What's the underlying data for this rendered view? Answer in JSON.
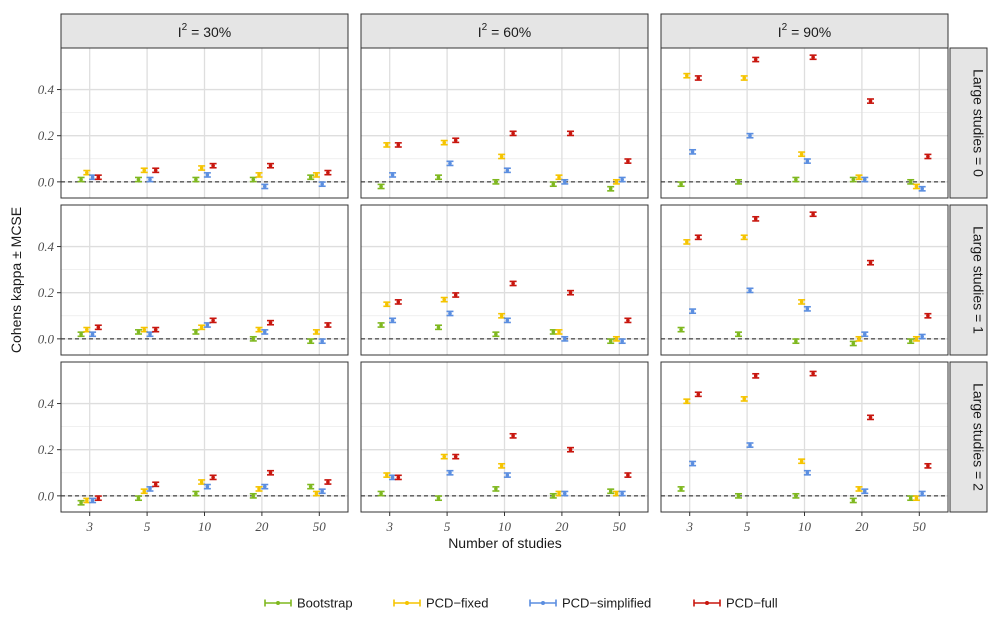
{
  "chart_data": {
    "type": "scatter",
    "xlabel": "Number of studies",
    "ylabel": "Cohens kappa ± MCSE",
    "x_categories": [
      "3",
      "5",
      "10",
      "20",
      "50"
    ],
    "y_ticks": [
      0.0,
      0.2,
      0.4
    ],
    "y_tick_labels": [
      "0.0",
      "0.2",
      "0.4"
    ],
    "ylim": [
      -0.07,
      0.58
    ],
    "reference_line_y": 0,
    "grid": true,
    "legend_position": "bottom",
    "columns": [
      {
        "label_base": "I",
        "label_sup": "2",
        "label_rest": " = 30%"
      },
      {
        "label_base": "I",
        "label_sup": "2",
        "label_rest": " = 60%"
      },
      {
        "label_base": "I",
        "label_sup": "2",
        "label_rest": " = 90%"
      }
    ],
    "rows": [
      {
        "label": "Large studies = 0"
      },
      {
        "label": "Large studies = 1"
      },
      {
        "label": "Large studies = 2"
      }
    ],
    "series": [
      {
        "name": "Bootstrap",
        "color": "#7fb81f",
        "dodge": -0.15
      },
      {
        "name": "PCD−fixed",
        "color": "#f5c400",
        "dodge": -0.05
      },
      {
        "name": "PCD−simplified",
        "color": "#5b8ee0",
        "dodge": 0.05
      },
      {
        "name": "PCD−full",
        "color": "#c8160e",
        "dodge": 0.15
      }
    ],
    "mcse": 0.009,
    "values": [
      [
        [
          [
            0.01,
            0.01,
            0.01,
            0.01,
            0.02
          ],
          [
            0.04,
            0.05,
            0.06,
            0.03,
            0.03
          ],
          [
            0.02,
            0.01,
            0.03,
            -0.02,
            -0.01
          ],
          [
            0.02,
            0.05,
            0.07,
            0.07,
            0.04
          ]
        ],
        [
          [
            -0.02,
            0.02,
            0.0,
            -0.01,
            -0.03
          ],
          [
            0.16,
            0.17,
            0.11,
            0.02,
            0.0
          ],
          [
            0.03,
            0.08,
            0.05,
            0.0,
            0.01
          ],
          [
            0.16,
            0.18,
            0.21,
            0.21,
            0.09
          ]
        ],
        [
          [
            -0.01,
            0.0,
            0.01,
            0.01,
            0.0
          ],
          [
            0.46,
            0.45,
            0.12,
            0.02,
            -0.02
          ],
          [
            0.13,
            0.2,
            0.09,
            0.01,
            -0.03
          ],
          [
            0.45,
            0.53,
            0.54,
            0.35,
            0.11
          ]
        ]
      ],
      [
        [
          [
            0.02,
            0.03,
            0.03,
            0.0,
            -0.01
          ],
          [
            0.04,
            0.04,
            0.05,
            0.04,
            0.03
          ],
          [
            0.02,
            0.02,
            0.06,
            0.03,
            -0.01
          ],
          [
            0.05,
            0.04,
            0.08,
            0.07,
            0.06
          ]
        ],
        [
          [
            0.06,
            0.05,
            0.02,
            0.03,
            -0.01
          ],
          [
            0.15,
            0.17,
            0.1,
            0.03,
            0.0
          ],
          [
            0.08,
            0.11,
            0.08,
            0.0,
            -0.01
          ],
          [
            0.16,
            0.19,
            0.24,
            0.2,
            0.08
          ]
        ],
        [
          [
            0.04,
            0.02,
            -0.01,
            -0.02,
            -0.01
          ],
          [
            0.42,
            0.44,
            0.16,
            0.0,
            0.0
          ],
          [
            0.12,
            0.21,
            0.13,
            0.02,
            0.01
          ],
          [
            0.44,
            0.52,
            0.54,
            0.33,
            0.1
          ]
        ]
      ],
      [
        [
          [
            -0.03,
            -0.01,
            0.01,
            0.0,
            0.04
          ],
          [
            -0.02,
            0.02,
            0.06,
            0.03,
            0.01
          ],
          [
            -0.02,
            0.03,
            0.04,
            0.04,
            0.02
          ],
          [
            -0.01,
            0.05,
            0.08,
            0.1,
            0.06
          ]
        ],
        [
          [
            0.01,
            -0.01,
            0.03,
            0.0,
            0.02
          ],
          [
            0.09,
            0.17,
            0.13,
            0.01,
            0.01
          ],
          [
            0.08,
            0.1,
            0.09,
            0.01,
            0.01
          ],
          [
            0.08,
            0.17,
            0.26,
            0.2,
            0.09
          ]
        ],
        [
          [
            0.03,
            0.0,
            0.0,
            -0.02,
            -0.01
          ],
          [
            0.41,
            0.42,
            0.15,
            0.03,
            -0.01
          ],
          [
            0.14,
            0.22,
            0.1,
            0.02,
            0.01
          ],
          [
            0.44,
            0.52,
            0.53,
            0.34,
            0.13
          ]
        ]
      ]
    ]
  }
}
